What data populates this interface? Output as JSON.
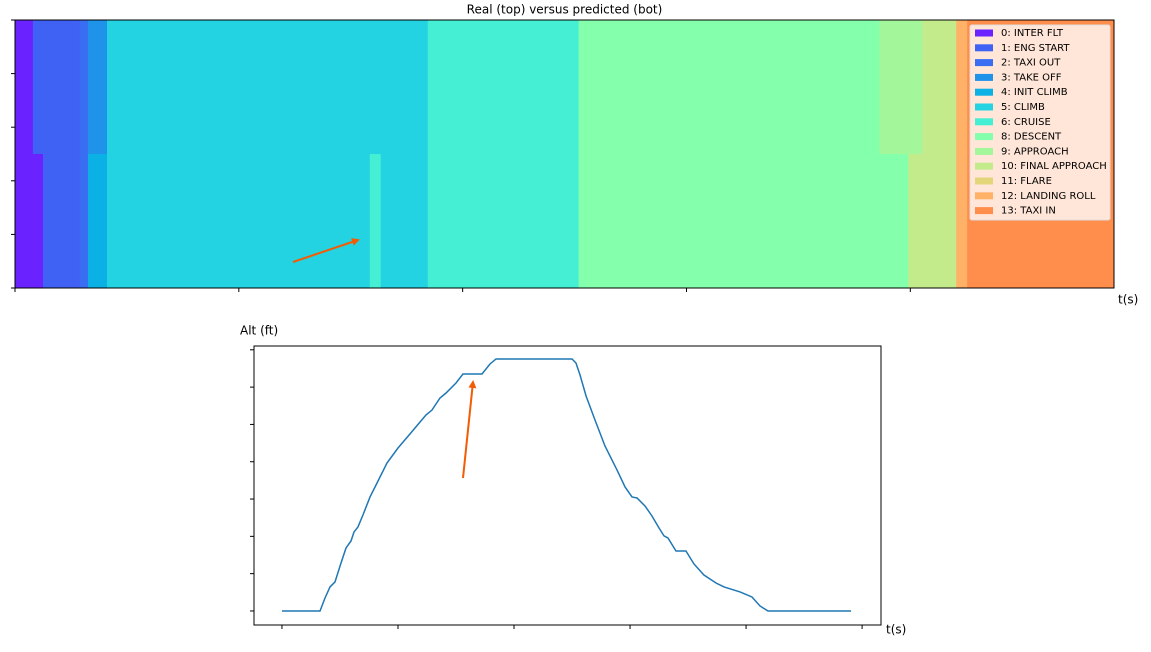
{
  "chart_data": [
    {
      "type": "segments",
      "title": "Real (top) versus predicted (bot)",
      "x_label": "t(s)",
      "xlim": [
        0,
        4910
      ],
      "xticks": [
        0,
        1000,
        2000,
        3000,
        4000
      ],
      "ylim": [
        0,
        5
      ],
      "yticks": [
        0,
        1,
        2,
        3,
        4,
        5
      ],
      "legend": {
        "labels": [
          "0: INTER FLT",
          "1: ENG START",
          "2: TAXI OUT",
          "3: TAKE OFF",
          "4: INIT CLIMB",
          "5: CLIMB",
          "6: CRUISE",
          "8: DESCENT",
          "9: APPROACH",
          "10: FINAL APPROACH",
          "11: FLARE",
          "12: LANDING ROLL",
          "13: TAXI IN"
        ],
        "colors": [
          "#6a22ff",
          "#4062f4",
          "#3a6ef2",
          "#1f92ea",
          "#0bb0e4",
          "#23d3e1",
          "#44efd4",
          "#84ffac",
          "#a3f79a",
          "#c3eb8b",
          "#e3d67a",
          "#ffb168",
          "#ff8d4c"
        ]
      },
      "rows": [
        [
          [
            0,
            80,
            0
          ],
          [
            80,
            290,
            1
          ],
          [
            290,
            326,
            2
          ],
          [
            326,
            411,
            3
          ],
          [
            411,
            1844,
            5
          ],
          [
            1844,
            2518,
            6
          ],
          [
            2518,
            3862,
            7
          ],
          [
            3862,
            4054,
            8
          ],
          [
            4054,
            4205,
            9
          ],
          [
            4205,
            4254,
            11
          ],
          [
            4254,
            4910,
            12
          ]
        ],
        [
          [
            0,
            125,
            0
          ],
          [
            125,
            290,
            1
          ],
          [
            290,
            326,
            2
          ],
          [
            326,
            411,
            4
          ],
          [
            411,
            1585,
            5
          ],
          [
            1585,
            1634,
            6
          ],
          [
            1634,
            1844,
            5
          ],
          [
            1844,
            2518,
            6
          ],
          [
            2518,
            3991,
            7
          ],
          [
            3991,
            4205,
            9
          ],
          [
            4205,
            4254,
            11
          ],
          [
            4254,
            4910,
            12
          ]
        ]
      ]
    },
    {
      "type": "line",
      "y_label": "Alt (ft)",
      "x_label": "t(s)",
      "color": "#1f77b4",
      "xlim": [
        -241,
        5163
      ],
      "xticks": [
        0,
        1000,
        2000,
        3000,
        4000,
        5000
      ],
      "ylim": [
        -1880,
        35510
      ],
      "yticks": [
        0,
        5000,
        10000,
        15000,
        20000,
        25000,
        30000,
        35000
      ],
      "x": [
        0,
        328,
        371,
        414,
        457,
        509,
        552,
        595,
        621,
        655,
        698,
        759,
        828,
        905,
        1000,
        1103,
        1190,
        1241,
        1293,
        1362,
        1414,
        1500,
        1560,
        1724,
        1793,
        1845,
        2052,
        2267,
        2396,
        2500,
        2534,
        2569,
        2621,
        2698,
        2784,
        2888,
        2957,
        3017,
        3060,
        3129,
        3189,
        3250,
        3293,
        3327,
        3396,
        3482,
        3551,
        3637,
        3741,
        3810,
        3948,
        4051,
        4120,
        4189,
        4905
      ],
      "values": [
        0,
        0,
        1740,
        3220,
        3890,
        6430,
        8440,
        9380,
        10590,
        11260,
        12860,
        15280,
        17420,
        19830,
        21840,
        23720,
        25330,
        26260,
        26930,
        28540,
        29210,
        30550,
        31760,
        31760,
        33100,
        33770,
        33770,
        33770,
        33770,
        33770,
        33230,
        31620,
        28810,
        25590,
        22110,
        18890,
        16620,
        15280,
        15140,
        14070,
        12730,
        11120,
        10050,
        9780,
        8040,
        8040,
        6300,
        4820,
        3750,
        3220,
        2550,
        1880,
        670,
        0,
        0
      ]
    }
  ]
}
